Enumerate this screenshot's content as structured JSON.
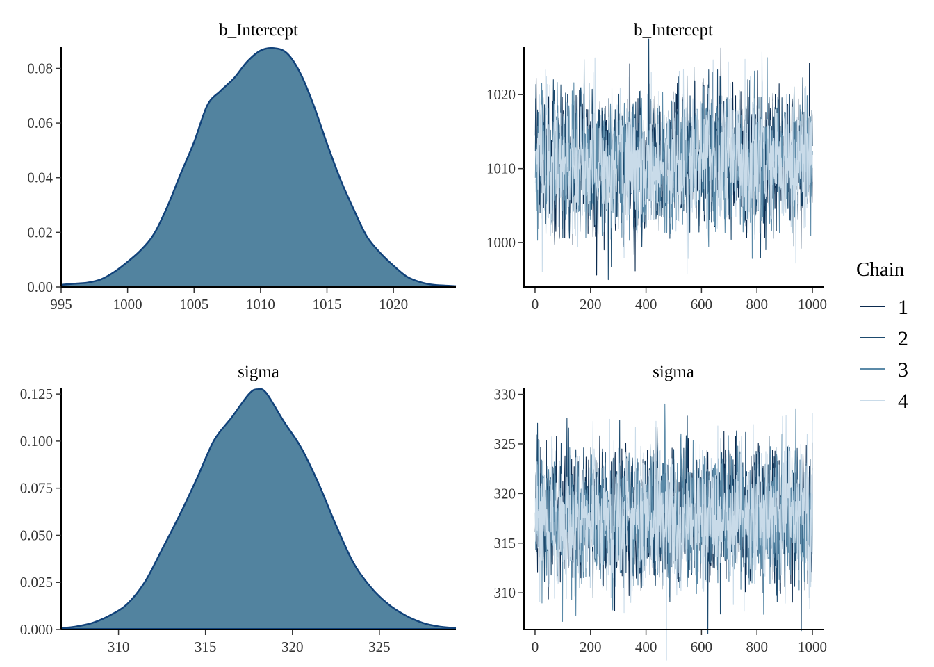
{
  "legend": {
    "title": "Chain",
    "items": [
      {
        "label": "1",
        "color": "#0b2a4e"
      },
      {
        "label": "2",
        "color": "#1d4a6e"
      },
      {
        "label": "3",
        "color": "#5b8aa8"
      },
      {
        "label": "4",
        "color": "#c9dbe9"
      }
    ]
  },
  "colors": {
    "density_fill": "#52839f",
    "density_line": "#11427a"
  },
  "chart_data": [
    {
      "type": "area",
      "title": "b_Intercept",
      "xlim": [
        995,
        1024.7
      ],
      "ylim": [
        0,
        0.088
      ],
      "xticks": [
        995,
        1000,
        1005,
        1010,
        1015,
        1020
      ],
      "yticks": [
        0.0,
        0.02,
        0.04,
        0.06,
        0.08
      ],
      "xtick_labels": [
        "995",
        "1000",
        "1005",
        "1010",
        "1015",
        "1020"
      ],
      "ytick_labels": [
        "0.00",
        "0.02",
        "0.04",
        "0.06",
        "0.08"
      ],
      "x": [
        995,
        996,
        997,
        998,
        999,
        1000,
        1001,
        1002,
        1003,
        1004,
        1005,
        1006,
        1007,
        1008,
        1009,
        1010,
        1011,
        1012,
        1013,
        1014,
        1015,
        1016,
        1017,
        1018,
        1019,
        1020,
        1021,
        1022,
        1023,
        1024.7
      ],
      "y": [
        0.0008,
        0.0012,
        0.0016,
        0.0028,
        0.0055,
        0.0092,
        0.0135,
        0.0195,
        0.0295,
        0.0415,
        0.053,
        0.0665,
        0.0718,
        0.0764,
        0.0825,
        0.0865,
        0.0874,
        0.0855,
        0.0782,
        0.0665,
        0.0525,
        0.0395,
        0.0285,
        0.0185,
        0.0125,
        0.0078,
        0.0038,
        0.0018,
        0.0008,
        0.0003
      ]
    },
    {
      "type": "line",
      "title": "b_Intercept",
      "xlim": [
        -40,
        1040
      ],
      "ylim": [
        994,
        1026.5
      ],
      "xticks": [
        0,
        200,
        400,
        600,
        800,
        1000
      ],
      "yticks": [
        1000,
        1010,
        1020
      ],
      "xtick_labels": [
        "0",
        "200",
        "400",
        "600",
        "800",
        "1000"
      ],
      "ytick_labels": [
        "1000",
        "1010",
        "1020"
      ],
      "iterations": 1000,
      "center": 1011,
      "spread": 4.6,
      "series": [
        {
          "name": "1",
          "color": "#0b2a4e"
        },
        {
          "name": "2",
          "color": "#1d4a6e"
        },
        {
          "name": "3",
          "color": "#5b8aa8"
        },
        {
          "name": "4",
          "color": "#c9dbe9"
        }
      ]
    },
    {
      "type": "area",
      "title": "sigma",
      "xlim": [
        306.7,
        329.4
      ],
      "ylim": [
        0,
        0.128
      ],
      "xticks": [
        310,
        315,
        320,
        325
      ],
      "yticks": [
        0.0,
        0.025,
        0.05,
        0.075,
        0.1,
        0.125
      ],
      "xtick_labels": [
        "310",
        "315",
        "320",
        "325"
      ],
      "ytick_labels": [
        "0.000",
        "0.025",
        "0.050",
        "0.075",
        "0.100",
        "0.125"
      ],
      "x": [
        306.7,
        307.5,
        308.5,
        309.5,
        310.5,
        311.5,
        312.5,
        313.5,
        314.5,
        315.5,
        316.5,
        317.5,
        318,
        318.5,
        319.5,
        320.5,
        321.5,
        322.5,
        323.5,
        324.5,
        325.5,
        326.5,
        327.5,
        328.5,
        329.4
      ],
      "y": [
        0.0008,
        0.0015,
        0.0035,
        0.0075,
        0.0135,
        0.025,
        0.0425,
        0.0605,
        0.08,
        0.1005,
        0.1125,
        0.125,
        0.1275,
        0.1255,
        0.1105,
        0.0965,
        0.0775,
        0.0555,
        0.0355,
        0.0225,
        0.0135,
        0.0075,
        0.0035,
        0.0015,
        0.0008
      ]
    },
    {
      "type": "line",
      "title": "sigma",
      "xlim": [
        -40,
        1040
      ],
      "ylim": [
        306.3,
        330.6
      ],
      "xticks": [
        0,
        200,
        400,
        600,
        800,
        1000
      ],
      "yticks": [
        310,
        315,
        320,
        325,
        330
      ],
      "xtick_labels": [
        "0",
        "200",
        "400",
        "600",
        "800",
        "1000"
      ],
      "ytick_labels": [
        "310",
        "315",
        "320",
        "325",
        "330"
      ],
      "iterations": 1000,
      "center": 317.8,
      "spread": 3.3,
      "series": [
        {
          "name": "1",
          "color": "#0b2a4e"
        },
        {
          "name": "2",
          "color": "#1d4a6e"
        },
        {
          "name": "3",
          "color": "#5b8aa8"
        },
        {
          "name": "4",
          "color": "#c9dbe9"
        }
      ]
    }
  ]
}
